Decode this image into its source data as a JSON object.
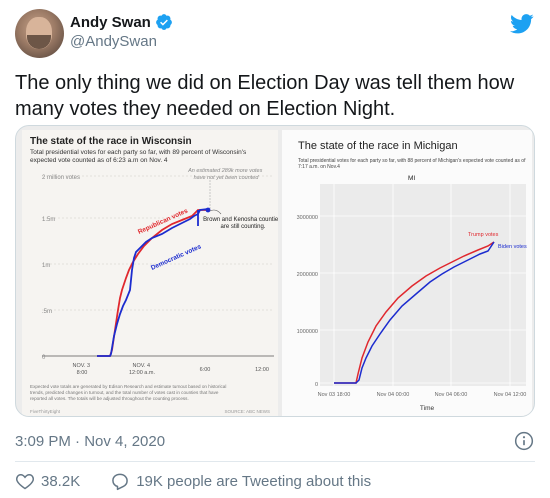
{
  "author": {
    "display_name": "Andy Swan",
    "handle": "@AndySwan"
  },
  "tweet": {
    "text": "The only thing we did on Election Day was tell them how many votes they needed on Election Night.",
    "timestamp": "3:09 PM · Nov 4, 2020"
  },
  "engagement": {
    "likes": "38.2K",
    "conversation": "19K people are Tweeting about this"
  },
  "colors": {
    "verified": "#1da1f2",
    "republican": "#e0282e",
    "democratic": "#1c2ccf",
    "like": "#657786"
  },
  "chart_data": [
    {
      "type": "line",
      "title": "The state of the race in Wisconsin",
      "subtitle": "Total presidential votes for each party so far, with 89 percent of Wisconsin's expected vote counted as of 6:23 a.m on Nov. 4",
      "y_tick_labels": [
        "2 million votes",
        "1.5m",
        "1m",
        ".5m",
        "0"
      ],
      "x_tick_labels": [
        "NOV. 3\n8:00",
        "NOV. 4\n12:00 a.m.",
        "6:00",
        "12:00"
      ],
      "annotations": [
        "An estimated 289k more votes have not yet been counted",
        "Brown and Kenosha counties are still counting."
      ],
      "series": [
        {
          "name": "Republican votes",
          "color": "#e0282e"
        },
        {
          "name": "Democratic votes",
          "color": "#1c2ccf"
        }
      ],
      "footnote": "Expected vote totals are generated by Edison Research and estimate turnout based on historical trends, predicted changes in turnout, and the total number of votes cast in counties that have reported all votes. The totals will be adjusted throughout the counting process.",
      "source_left": "FiveThirtyEight",
      "source_right": "SOURCE: ABC NEWS"
    },
    {
      "type": "line",
      "title": "The state of the race in Michigan",
      "subtitle": "Total presidential votes for each party so far, with 88 percent of Michigan's expected vote counted as of 7:17 a.m. on Nov.4",
      "panel_label": "MI",
      "y_tick_labels": [
        "3000000",
        "2000000",
        "1000000",
        "0"
      ],
      "x_tick_labels": [
        "Nov 03 18:00",
        "Nov 04 00:00",
        "Nov 04 06:00",
        "Nov 04 12:00"
      ],
      "xlabel": "Time",
      "series": [
        {
          "name": "Trump votes",
          "color": "#e0282e"
        },
        {
          "name": "Biden votes",
          "color": "#1c2ccf"
        }
      ]
    }
  ]
}
